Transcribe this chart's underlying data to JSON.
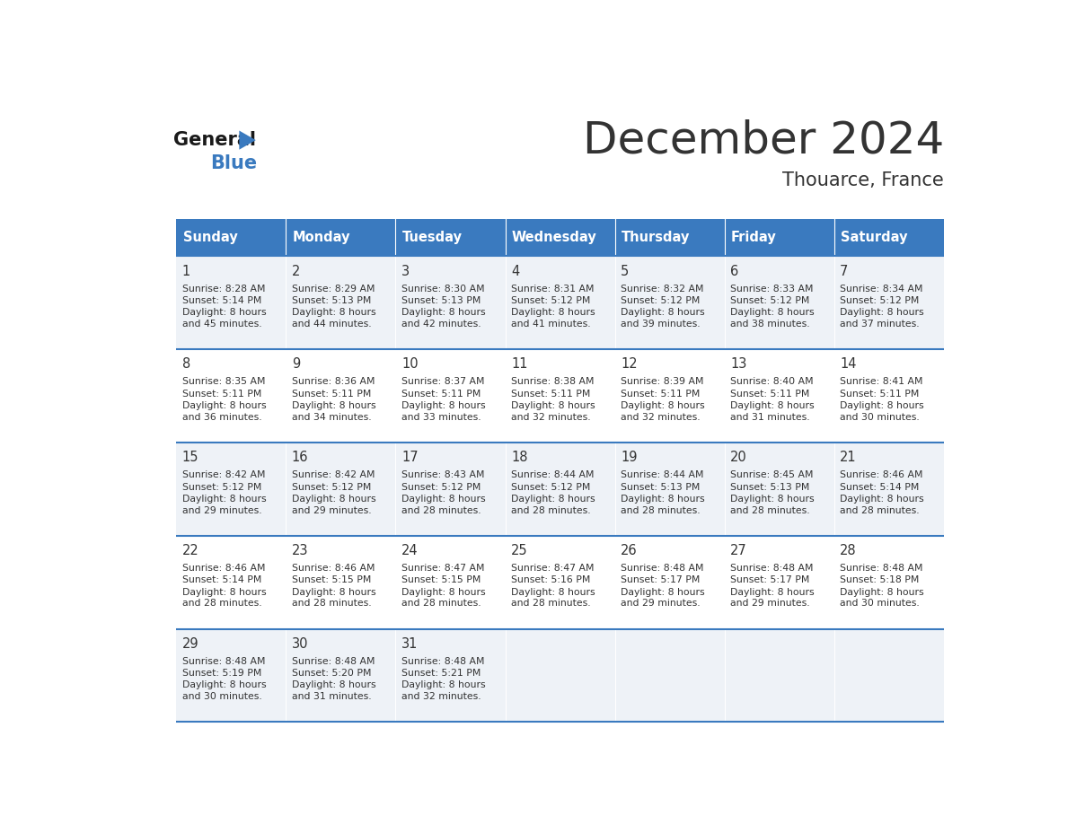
{
  "title": "December 2024",
  "subtitle": "Thouarce, France",
  "header_color": "#3a7abf",
  "header_text_color": "#ffffff",
  "cell_bg_even": "#eef2f7",
  "cell_bg_odd": "#ffffff",
  "border_color": "#3a7abf",
  "text_color": "#333333",
  "day_headers": [
    "Sunday",
    "Monday",
    "Tuesday",
    "Wednesday",
    "Thursday",
    "Friday",
    "Saturday"
  ],
  "days": [
    {
      "day": 1,
      "col": 0,
      "row": 0,
      "sunrise": "8:28 AM",
      "sunset": "5:14 PM",
      "daylight": "8 hours and 45 minutes."
    },
    {
      "day": 2,
      "col": 1,
      "row": 0,
      "sunrise": "8:29 AM",
      "sunset": "5:13 PM",
      "daylight": "8 hours and 44 minutes."
    },
    {
      "day": 3,
      "col": 2,
      "row": 0,
      "sunrise": "8:30 AM",
      "sunset": "5:13 PM",
      "daylight": "8 hours and 42 minutes."
    },
    {
      "day": 4,
      "col": 3,
      "row": 0,
      "sunrise": "8:31 AM",
      "sunset": "5:12 PM",
      "daylight": "8 hours and 41 minutes."
    },
    {
      "day": 5,
      "col": 4,
      "row": 0,
      "sunrise": "8:32 AM",
      "sunset": "5:12 PM",
      "daylight": "8 hours and 39 minutes."
    },
    {
      "day": 6,
      "col": 5,
      "row": 0,
      "sunrise": "8:33 AM",
      "sunset": "5:12 PM",
      "daylight": "8 hours and 38 minutes."
    },
    {
      "day": 7,
      "col": 6,
      "row": 0,
      "sunrise": "8:34 AM",
      "sunset": "5:12 PM",
      "daylight": "8 hours and 37 minutes."
    },
    {
      "day": 8,
      "col": 0,
      "row": 1,
      "sunrise": "8:35 AM",
      "sunset": "5:11 PM",
      "daylight": "8 hours and 36 minutes."
    },
    {
      "day": 9,
      "col": 1,
      "row": 1,
      "sunrise": "8:36 AM",
      "sunset": "5:11 PM",
      "daylight": "8 hours and 34 minutes."
    },
    {
      "day": 10,
      "col": 2,
      "row": 1,
      "sunrise": "8:37 AM",
      "sunset": "5:11 PM",
      "daylight": "8 hours and 33 minutes."
    },
    {
      "day": 11,
      "col": 3,
      "row": 1,
      "sunrise": "8:38 AM",
      "sunset": "5:11 PM",
      "daylight": "8 hours and 32 minutes."
    },
    {
      "day": 12,
      "col": 4,
      "row": 1,
      "sunrise": "8:39 AM",
      "sunset": "5:11 PM",
      "daylight": "8 hours and 32 minutes."
    },
    {
      "day": 13,
      "col": 5,
      "row": 1,
      "sunrise": "8:40 AM",
      "sunset": "5:11 PM",
      "daylight": "8 hours and 31 minutes."
    },
    {
      "day": 14,
      "col": 6,
      "row": 1,
      "sunrise": "8:41 AM",
      "sunset": "5:11 PM",
      "daylight": "8 hours and 30 minutes."
    },
    {
      "day": 15,
      "col": 0,
      "row": 2,
      "sunrise": "8:42 AM",
      "sunset": "5:12 PM",
      "daylight": "8 hours and 29 minutes."
    },
    {
      "day": 16,
      "col": 1,
      "row": 2,
      "sunrise": "8:42 AM",
      "sunset": "5:12 PM",
      "daylight": "8 hours and 29 minutes."
    },
    {
      "day": 17,
      "col": 2,
      "row": 2,
      "sunrise": "8:43 AM",
      "sunset": "5:12 PM",
      "daylight": "8 hours and 28 minutes."
    },
    {
      "day": 18,
      "col": 3,
      "row": 2,
      "sunrise": "8:44 AM",
      "sunset": "5:12 PM",
      "daylight": "8 hours and 28 minutes."
    },
    {
      "day": 19,
      "col": 4,
      "row": 2,
      "sunrise": "8:44 AM",
      "sunset": "5:13 PM",
      "daylight": "8 hours and 28 minutes."
    },
    {
      "day": 20,
      "col": 5,
      "row": 2,
      "sunrise": "8:45 AM",
      "sunset": "5:13 PM",
      "daylight": "8 hours and 28 minutes."
    },
    {
      "day": 21,
      "col": 6,
      "row": 2,
      "sunrise": "8:46 AM",
      "sunset": "5:14 PM",
      "daylight": "8 hours and 28 minutes."
    },
    {
      "day": 22,
      "col": 0,
      "row": 3,
      "sunrise": "8:46 AM",
      "sunset": "5:14 PM",
      "daylight": "8 hours and 28 minutes."
    },
    {
      "day": 23,
      "col": 1,
      "row": 3,
      "sunrise": "8:46 AM",
      "sunset": "5:15 PM",
      "daylight": "8 hours and 28 minutes."
    },
    {
      "day": 24,
      "col": 2,
      "row": 3,
      "sunrise": "8:47 AM",
      "sunset": "5:15 PM",
      "daylight": "8 hours and 28 minutes."
    },
    {
      "day": 25,
      "col": 3,
      "row": 3,
      "sunrise": "8:47 AM",
      "sunset": "5:16 PM",
      "daylight": "8 hours and 28 minutes."
    },
    {
      "day": 26,
      "col": 4,
      "row": 3,
      "sunrise": "8:48 AM",
      "sunset": "5:17 PM",
      "daylight": "8 hours and 29 minutes."
    },
    {
      "day": 27,
      "col": 5,
      "row": 3,
      "sunrise": "8:48 AM",
      "sunset": "5:17 PM",
      "daylight": "8 hours and 29 minutes."
    },
    {
      "day": 28,
      "col": 6,
      "row": 3,
      "sunrise": "8:48 AM",
      "sunset": "5:18 PM",
      "daylight": "8 hours and 30 minutes."
    },
    {
      "day": 29,
      "col": 0,
      "row": 4,
      "sunrise": "8:48 AM",
      "sunset": "5:19 PM",
      "daylight": "8 hours and 30 minutes."
    },
    {
      "day": 30,
      "col": 1,
      "row": 4,
      "sunrise": "8:48 AM",
      "sunset": "5:20 PM",
      "daylight": "8 hours and 31 minutes."
    },
    {
      "day": 31,
      "col": 2,
      "row": 4,
      "sunrise": "8:48 AM",
      "sunset": "5:21 PM",
      "daylight": "8 hours and 32 minutes."
    }
  ],
  "logo_general_color": "#1a1a1a",
  "logo_blue_color": "#3a7abf",
  "logo_triangle_color": "#3a7abf"
}
